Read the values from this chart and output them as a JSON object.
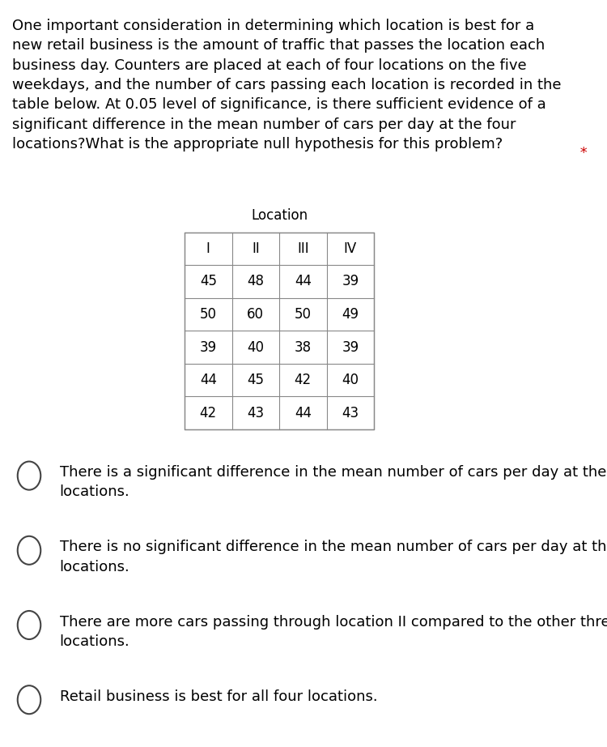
{
  "title_text": "One important consideration in determining which location is best for a\nnew retail business is the amount of traffic that passes the location each\nbusiness day. Counters are placed at each of four locations on the five\nweekdays, and the number of cars passing each location is recorded in the\ntable below. At 0.05 level of significance, is there sufficient evidence of a\nsignificant difference in the mean number of cars per day at the four\nlocations?What is the appropriate null hypothesis for this problem?",
  "asterisk": " *",
  "table_title": "Location",
  "col_headers": [
    "I",
    "II",
    "III",
    "IV"
  ],
  "table_data": [
    [
      "45",
      "48",
      "44",
      "39"
    ],
    [
      "50",
      "60",
      "50",
      "49"
    ],
    [
      "39",
      "40",
      "38",
      "39"
    ],
    [
      "44",
      "45",
      "42",
      "40"
    ],
    [
      "42",
      "43",
      "44",
      "43"
    ]
  ],
  "options": [
    "There is a significant difference in the mean number of cars per day at the four\nlocations.",
    "There is no significant difference in the mean number of cars per day at the four\nlocations.",
    "There are more cars passing through location II compared to the other three\nlocations.",
    "Retail business is best for all four locations."
  ],
  "bg_color": "#ffffff",
  "text_color": "#000000",
  "title_fontsize": 13.0,
  "option_fontsize": 13.0,
  "table_fontsize": 12.0,
  "asterisk_color": "#cc0000"
}
